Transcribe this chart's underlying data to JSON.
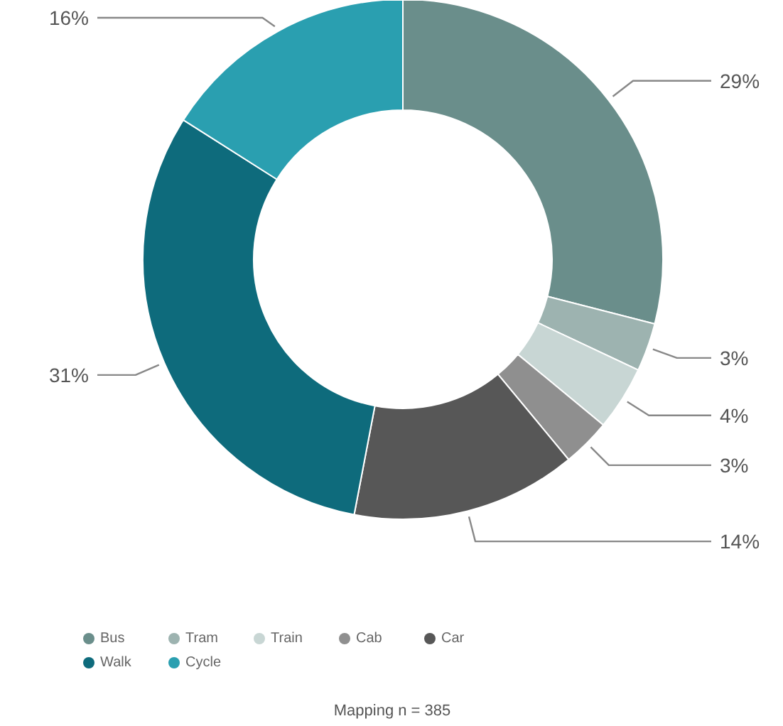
{
  "chart_data": {
    "type": "donut",
    "categories": [
      "Bus",
      "Tram",
      "Train",
      "Cab",
      "Car",
      "Walk",
      "Cycle"
    ],
    "values": [
      29,
      3,
      4,
      3,
      14,
      31,
      16
    ],
    "colors": [
      "#6a8e8b",
      "#9db3b0",
      "#c8d6d4",
      "#8f8f8f",
      "#575757",
      "#0e6b7c",
      "#2a9fb0"
    ],
    "value_labels": [
      "29%",
      "3%",
      "4%",
      "3%",
      "14%",
      "31%",
      "16%"
    ],
    "legend": "bottom",
    "annotations": [
      "Mapping n = 385"
    ]
  }
}
